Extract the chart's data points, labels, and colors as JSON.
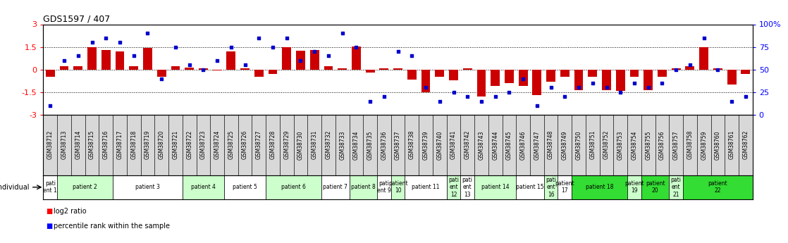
{
  "title": "GDS1597 / 407",
  "gsm_labels": [
    "GSM38712",
    "GSM38713",
    "GSM38714",
    "GSM38715",
    "GSM38716",
    "GSM38717",
    "GSM38718",
    "GSM38719",
    "GSM38720",
    "GSM38721",
    "GSM38722",
    "GSM38723",
    "GSM38724",
    "GSM38725",
    "GSM38726",
    "GSM38727",
    "GSM38728",
    "GSM38729",
    "GSM38730",
    "GSM38731",
    "GSM38732",
    "GSM38733",
    "GSM38734",
    "GSM38735",
    "GSM38736",
    "GSM38737",
    "GSM38738",
    "GSM38739",
    "GSM38740",
    "GSM38741",
    "GSM38742",
    "GSM38743",
    "GSM38744",
    "GSM38745",
    "GSM38746",
    "GSM38747",
    "GSM38748",
    "GSM38749",
    "GSM38750",
    "GSM38751",
    "GSM38752",
    "GSM38753",
    "GSM38754",
    "GSM38755",
    "GSM38756",
    "GSM38757",
    "GSM38758",
    "GSM38759",
    "GSM38760",
    "GSM38761",
    "GSM38762"
  ],
  "log2_ratio": [
    -0.5,
    0.2,
    0.2,
    1.5,
    1.3,
    1.2,
    0.2,
    1.45,
    -0.5,
    0.2,
    0.15,
    0.1,
    -0.07,
    1.2,
    0.1,
    -0.5,
    -0.28,
    1.5,
    1.25,
    1.3,
    0.2,
    0.1,
    1.52,
    -0.2,
    0.1,
    0.08,
    -0.65,
    -1.5,
    -0.5,
    -0.7,
    0.1,
    -1.8,
    -1.1,
    -0.9,
    -1.1,
    -1.7,
    -0.8,
    -0.5,
    -1.35,
    -0.5,
    -1.35,
    -1.4,
    -0.5,
    -1.35,
    -0.5,
    0.1,
    0.2,
    1.5,
    0.1,
    -1.0,
    -0.3
  ],
  "percentile": [
    10,
    60,
    65,
    80,
    85,
    80,
    65,
    90,
    40,
    75,
    55,
    50,
    60,
    75,
    55,
    85,
    75,
    85,
    60,
    70,
    65,
    90,
    75,
    15,
    20,
    70,
    65,
    30,
    15,
    25,
    20,
    15,
    20,
    25,
    40,
    10,
    30,
    20,
    30,
    35,
    30,
    25,
    35,
    30,
    35,
    50,
    55,
    85,
    50,
    15,
    20
  ],
  "patient_groups": [
    {
      "label": "pati\nent 1",
      "start": 0,
      "end": 1,
      "color": "#ffffff"
    },
    {
      "label": "patient 2",
      "start": 1,
      "end": 5,
      "color": "#ccffcc"
    },
    {
      "label": "patient 3",
      "start": 5,
      "end": 10,
      "color": "#ffffff"
    },
    {
      "label": "patient 4",
      "start": 10,
      "end": 13,
      "color": "#ccffcc"
    },
    {
      "label": "patient 5",
      "start": 13,
      "end": 16,
      "color": "#ffffff"
    },
    {
      "label": "patient 6",
      "start": 16,
      "end": 20,
      "color": "#ccffcc"
    },
    {
      "label": "patient 7",
      "start": 20,
      "end": 22,
      "color": "#ffffff"
    },
    {
      "label": "patient 8",
      "start": 22,
      "end": 24,
      "color": "#ccffcc"
    },
    {
      "label": "pati\nent 9",
      "start": 24,
      "end": 25,
      "color": "#ffffff"
    },
    {
      "label": "patient\n10",
      "start": 25,
      "end": 26,
      "color": "#ccffcc"
    },
    {
      "label": "patient 11",
      "start": 26,
      "end": 29,
      "color": "#ffffff"
    },
    {
      "label": "pati\nent\n12",
      "start": 29,
      "end": 30,
      "color": "#ccffcc"
    },
    {
      "label": "pati\nent\n13",
      "start": 30,
      "end": 31,
      "color": "#ffffff"
    },
    {
      "label": "patient 14",
      "start": 31,
      "end": 34,
      "color": "#ccffcc"
    },
    {
      "label": "patient 15",
      "start": 34,
      "end": 36,
      "color": "#ffffff"
    },
    {
      "label": "pati\nent\n16",
      "start": 36,
      "end": 37,
      "color": "#ccffcc"
    },
    {
      "label": "patient\n17",
      "start": 37,
      "end": 38,
      "color": "#ffffff"
    },
    {
      "label": "patient 18",
      "start": 38,
      "end": 42,
      "color": "#33dd33"
    },
    {
      "label": "patient\n19",
      "start": 42,
      "end": 43,
      "color": "#ccffcc"
    },
    {
      "label": "patient\n20",
      "start": 43,
      "end": 45,
      "color": "#33dd33"
    },
    {
      "label": "pati\nent\n21",
      "start": 45,
      "end": 46,
      "color": "#ccffcc"
    },
    {
      "label": "patient\n22",
      "start": 46,
      "end": 51,
      "color": "#33dd33"
    }
  ],
  "bar_color": "#cc0000",
  "dot_color": "#0000cc",
  "gsm_bg_color": "#d8d8d8",
  "ylim_left": [
    -3,
    3
  ],
  "ylim_right": [
    0,
    100
  ],
  "yticks_left": [
    -3,
    -1.5,
    0,
    1.5,
    3
  ],
  "yticks_right": [
    0,
    25,
    50,
    75,
    100
  ],
  "hlines": [
    -1.5,
    0,
    1.5
  ],
  "background_color": "#ffffff"
}
